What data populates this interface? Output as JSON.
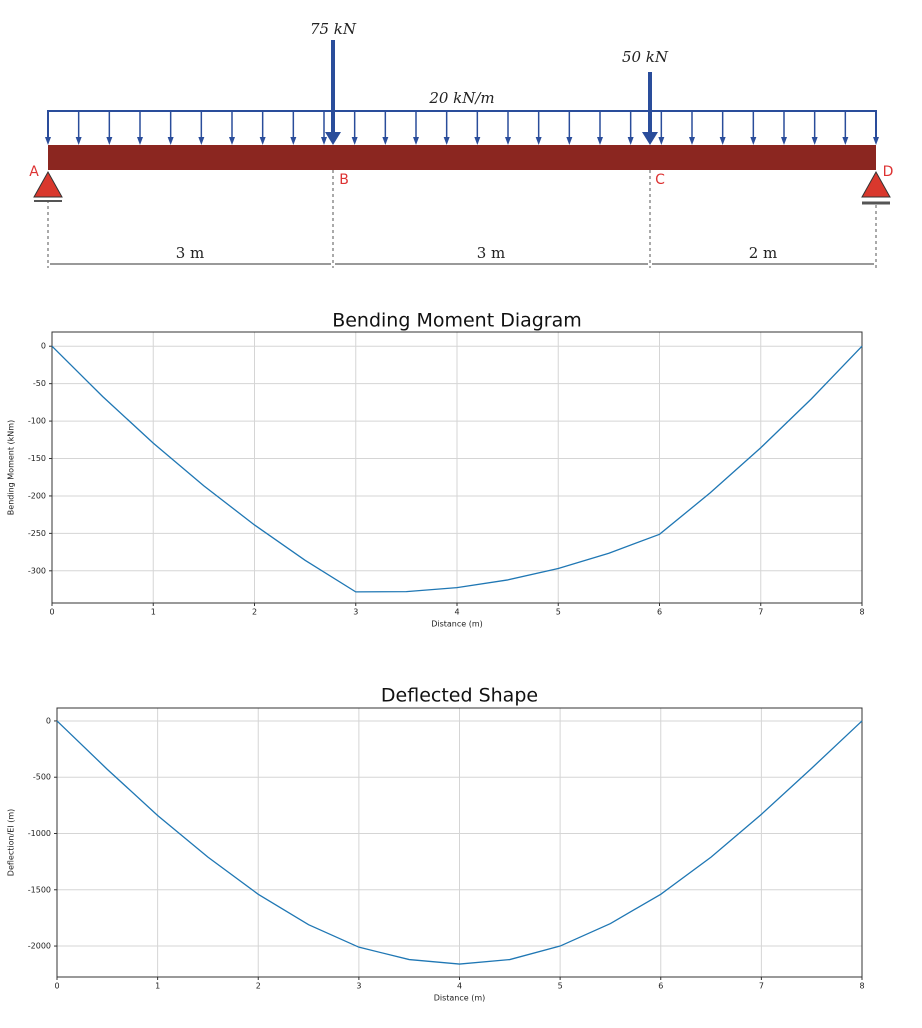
{
  "beam": {
    "point_loads": [
      "75 kN",
      "50 kN"
    ],
    "distributed_load": "20 kN/m",
    "points": [
      "A",
      "B",
      "C",
      "D"
    ],
    "spans": [
      "3 m",
      "3 m",
      "2 m"
    ]
  },
  "chart_data": [
    {
      "type": "line",
      "title": "Bending Moment Diagram",
      "x_label": "Distance (m)",
      "y_label": "Bending Moment (kNm)",
      "x": [
        0,
        0.5,
        1,
        1.5,
        2,
        2.5,
        3,
        3.5,
        4,
        4.5,
        5,
        5.5,
        6,
        6.5,
        7,
        7.5,
        8
      ],
      "values": [
        0,
        -67.19,
        -129.38,
        -186.56,
        -238.75,
        -285.94,
        -328.13,
        -327.81,
        -322.5,
        -312.19,
        -296.88,
        -276.56,
        -251.25,
        -195.94,
        -135.63,
        -70.31,
        0
      ],
      "color": "#1f77b4",
      "xlim": [
        0,
        8
      ],
      "ylim": [
        -343,
        19
      ],
      "xticks": [
        0,
        1,
        2,
        3,
        4,
        5,
        6,
        7,
        8
      ],
      "yticks": [
        0,
        -50,
        -100,
        -150,
        -200,
        -250,
        -300
      ],
      "grid": true
    },
    {
      "type": "line",
      "title": "Deflected Shape",
      "x_label": "Distance (m)",
      "y_label": "Deflection/EI (m)",
      "x": [
        0,
        0.5,
        1,
        1.5,
        2,
        2.5,
        3,
        3.5,
        4,
        4.5,
        5,
        5.5,
        6,
        6.5,
        7,
        7.5,
        8
      ],
      "values": [
        0,
        -430,
        -840,
        -1210,
        -1540,
        -1810,
        -2010,
        -2120,
        -2160,
        -2120,
        -2000,
        -1800,
        -1540,
        -1210,
        -830,
        -420,
        0
      ],
      "color": "#1f77b4",
      "xlim": [
        0,
        8
      ],
      "ylim": [
        -2275,
        115
      ],
      "xticks": [
        0,
        1,
        2,
        3,
        4,
        5,
        6,
        7,
        8
      ],
      "yticks": [
        0,
        -500,
        -1000,
        -1500,
        -2000
      ],
      "grid": true
    }
  ]
}
